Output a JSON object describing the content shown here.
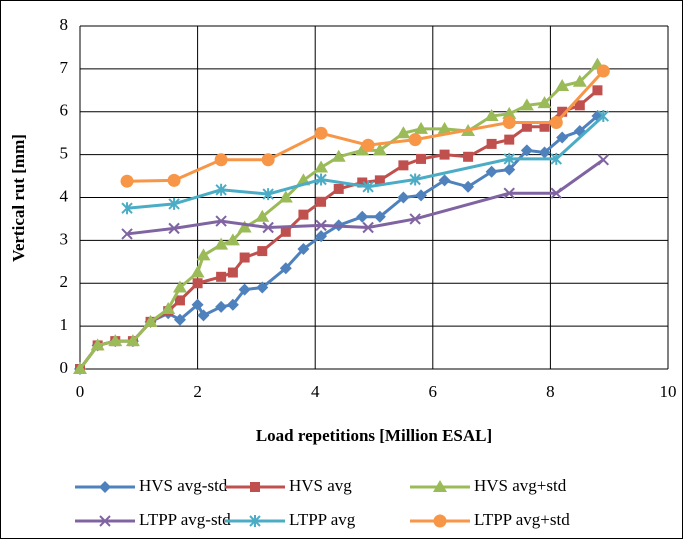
{
  "chart_data": {
    "type": "line",
    "xlabel": "Load repetitions [Million ESAL]",
    "ylabel": "Vertical rut [mm]",
    "xlim": [
      0,
      10
    ],
    "xticks": [
      0,
      2,
      4,
      6,
      8,
      10
    ],
    "ylim": [
      0,
      8
    ],
    "yticks": [
      0,
      1,
      2,
      3,
      4,
      5,
      6,
      7,
      8
    ],
    "grid": true,
    "legend": "bottom",
    "series": [
      {
        "name": "HVS avg-std",
        "color": "#4f81bd",
        "marker": "diamond",
        "x": [
          0,
          0.3,
          0.6,
          0.9,
          1.2,
          1.5,
          1.7,
          2.0,
          2.1,
          2.4,
          2.6,
          2.8,
          3.1,
          3.5,
          3.8,
          4.1,
          4.4,
          4.8,
          5.1,
          5.5,
          5.8,
          6.2,
          6.6,
          7.0,
          7.3,
          7.6,
          7.9,
          8.2,
          8.5,
          8.8
        ],
        "values": [
          0,
          0.55,
          0.65,
          0.65,
          1.1,
          1.3,
          1.15,
          1.5,
          1.25,
          1.45,
          1.5,
          1.85,
          1.9,
          2.35,
          2.8,
          3.1,
          3.35,
          3.55,
          3.55,
          4.0,
          4.05,
          4.4,
          4.25,
          4.6,
          4.65,
          5.1,
          5.05,
          5.4,
          5.55,
          5.9
        ]
      },
      {
        "name": "HVS avg",
        "color": "#c0504d",
        "marker": "square",
        "x": [
          0,
          0.3,
          0.6,
          0.9,
          1.2,
          1.5,
          1.7,
          2.0,
          2.4,
          2.6,
          2.8,
          3.1,
          3.5,
          3.8,
          4.1,
          4.4,
          4.8,
          5.1,
          5.5,
          5.8,
          6.2,
          6.6,
          7.0,
          7.3,
          7.6,
          7.9,
          8.2,
          8.5,
          8.8
        ],
        "values": [
          0,
          0.55,
          0.65,
          0.65,
          1.1,
          1.35,
          1.6,
          2.0,
          2.15,
          2.25,
          2.6,
          2.75,
          3.2,
          3.6,
          3.9,
          4.2,
          4.35,
          4.4,
          4.75,
          4.9,
          5.0,
          4.95,
          5.25,
          5.35,
          5.65,
          5.65,
          6.0,
          6.15,
          6.5
        ]
      },
      {
        "name": "HVS avg+std",
        "color": "#9bbb59",
        "marker": "triangle",
        "x": [
          0,
          0.3,
          0.6,
          0.9,
          1.2,
          1.5,
          1.7,
          2.0,
          2.1,
          2.4,
          2.6,
          2.8,
          3.1,
          3.5,
          3.8,
          4.1,
          4.4,
          4.8,
          5.1,
          5.5,
          5.8,
          6.2,
          6.6,
          7.0,
          7.3,
          7.6,
          7.9,
          8.2,
          8.5,
          8.8
        ],
        "values": [
          0,
          0.55,
          0.65,
          0.65,
          1.1,
          1.4,
          1.9,
          2.25,
          2.65,
          2.9,
          3.0,
          3.3,
          3.55,
          4.0,
          4.4,
          4.7,
          4.95,
          5.1,
          5.1,
          5.5,
          5.6,
          5.6,
          5.55,
          5.9,
          5.95,
          6.15,
          6.2,
          6.6,
          6.7,
          7.1
        ]
      },
      {
        "name": "LTPP avg-std",
        "color": "#8064a2",
        "marker": "x",
        "x": [
          0.8,
          1.6,
          2.4,
          3.2,
          4.1,
          4.9,
          5.7,
          7.3,
          8.1,
          8.9
        ],
        "values": [
          3.15,
          3.28,
          3.45,
          3.3,
          3.35,
          3.3,
          3.5,
          4.1,
          4.1,
          4.88
        ]
      },
      {
        "name": "LTPP avg",
        "color": "#4bacc6",
        "marker": "star",
        "x": [
          0.8,
          1.6,
          2.4,
          3.2,
          4.1,
          4.9,
          5.7,
          7.3,
          8.1,
          8.9
        ],
        "values": [
          3.75,
          3.85,
          4.18,
          4.08,
          4.42,
          4.25,
          4.42,
          4.9,
          4.9,
          5.9
        ]
      },
      {
        "name": "LTPP avg+std",
        "color": "#f79646",
        "marker": "circle",
        "x": [
          0.8,
          1.6,
          2.4,
          3.2,
          4.1,
          4.9,
          5.7,
          7.3,
          8.1,
          8.9
        ],
        "values": [
          4.38,
          4.4,
          4.88,
          4.88,
          5.5,
          5.22,
          5.35,
          5.75,
          5.75,
          6.95
        ]
      }
    ]
  }
}
